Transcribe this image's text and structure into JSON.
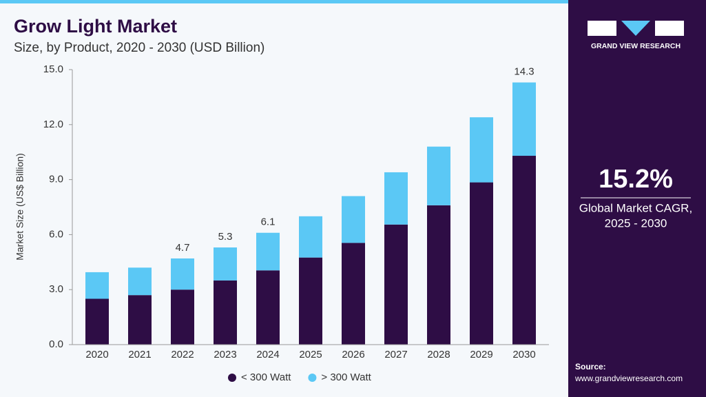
{
  "chart_data": {
    "type": "stacked_bar",
    "title": "Grow Light Market",
    "subtitle": "Size, by Product, 2020 - 2030 (USD Billion)",
    "y_label": "Market Size (US$ Billion)",
    "categories": [
      "2020",
      "2021",
      "2022",
      "2023",
      "2024",
      "2025",
      "2026",
      "2027",
      "2028",
      "2029",
      "2030"
    ],
    "series": [
      {
        "name": "< 300 Watt",
        "color": "#2e0d45",
        "values": [
          2.5,
          2.7,
          3.0,
          3.5,
          4.05,
          4.75,
          5.55,
          6.55,
          7.6,
          8.85,
          10.3
        ]
      },
      {
        "name": "> 300 Watt",
        "color": "#5bc8f5",
        "values": [
          1.45,
          1.5,
          1.7,
          1.8,
          2.05,
          2.25,
          2.55,
          2.85,
          3.2,
          3.55,
          4.0
        ]
      }
    ],
    "total_labels": [
      null,
      null,
      "4.7",
      "5.3",
      "6.1",
      null,
      null,
      null,
      null,
      null,
      "14.3"
    ],
    "ylim": [
      0,
      15
    ],
    "yticks": [
      {
        "value": 0,
        "label": "0.0"
      },
      {
        "value": 3,
        "label": "3.0"
      },
      {
        "value": 6,
        "label": "6.0"
      },
      {
        "value": 9,
        "label": "9.0"
      },
      {
        "value": 12,
        "label": "12.0"
      },
      {
        "value": 15,
        "label": "15.0"
      }
    ],
    "legend": "bottom"
  },
  "sidebar": {
    "brand": "GRAND VIEW RESEARCH",
    "cagr": "15.2%",
    "cagr_label_1": "Global Market CAGR,",
    "cagr_label_2": "2025 - 2030",
    "source_label": "Source:",
    "source_url": "www.grandviewresearch.com"
  }
}
